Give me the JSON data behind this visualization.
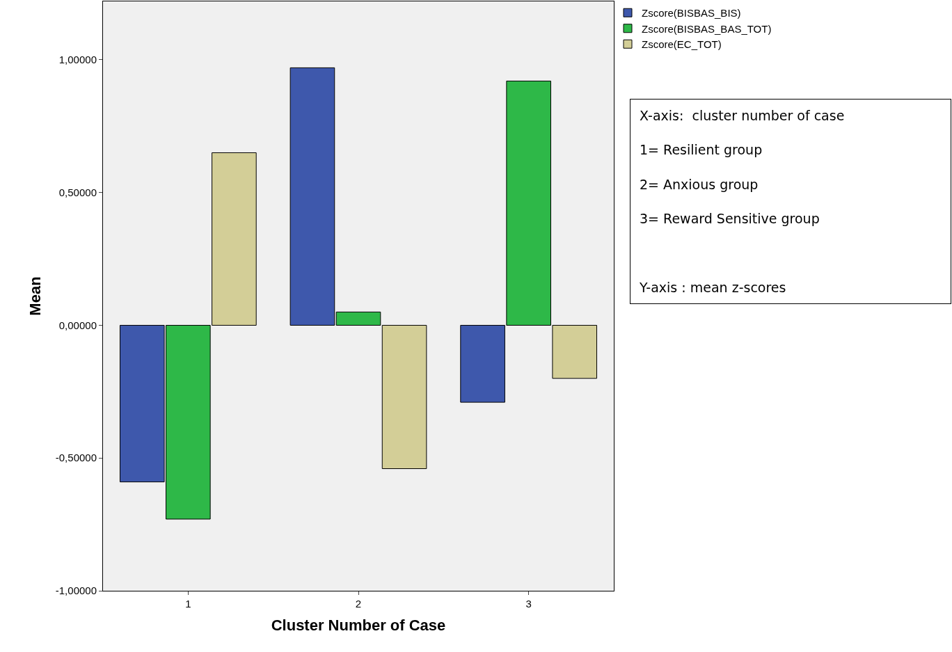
{
  "chart_data": {
    "type": "bar",
    "xlabel": "Cluster Number of Case",
    "ylabel": "Mean",
    "categories": [
      "1",
      "2",
      "3"
    ],
    "series": [
      {
        "name": "Zscore(BISBAS_BIS)",
        "color": "#3e58ac",
        "values": [
          -0.59,
          0.97,
          -0.29
        ]
      },
      {
        "name": "Zscore(BISBAS_BAS_TOT)",
        "color": "#2eb848",
        "values": [
          -0.73,
          0.05,
          0.92
        ]
      },
      {
        "name": "Zscore(EC_TOT)",
        "color": "#d3ce97",
        "values": [
          0.65,
          -0.54,
          -0.2
        ]
      }
    ],
    "ylim": [
      -1,
      1.22
    ],
    "yticks": [
      {
        "value": -1,
        "label": "-1,00000"
      },
      {
        "value": -0.5,
        "label": "-0,50000"
      },
      {
        "value": 0,
        "label": "0,00000"
      },
      {
        "value": 0.5,
        "label": "0,50000"
      },
      {
        "value": 1,
        "label": "1,00000"
      }
    ],
    "grid": false,
    "legend": "top right",
    "annotations": [
      "X-axis:  cluster number of case\n\n1= Resilient group\n\n2= Anxious group\n\n3= Reward Sensitive group\n\n\n\nY-axis : mean z-scores"
    ]
  }
}
